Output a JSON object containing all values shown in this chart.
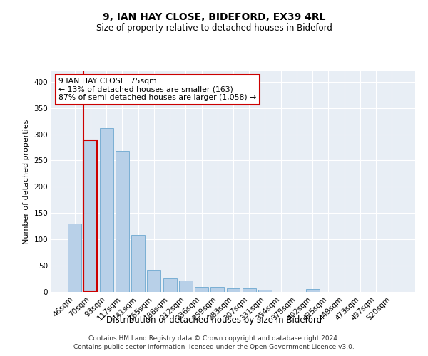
{
  "title": "9, IAN HAY CLOSE, BIDEFORD, EX39 4RL",
  "subtitle": "Size of property relative to detached houses in Bideford",
  "xlabel": "Distribution of detached houses by size in Bideford",
  "ylabel": "Number of detached properties",
  "categories": [
    "46sqm",
    "70sqm",
    "93sqm",
    "117sqm",
    "141sqm",
    "165sqm",
    "188sqm",
    "212sqm",
    "236sqm",
    "259sqm",
    "283sqm",
    "307sqm",
    "331sqm",
    "354sqm",
    "378sqm",
    "402sqm",
    "425sqm",
    "449sqm",
    "473sqm",
    "497sqm",
    "520sqm"
  ],
  "values": [
    130,
    288,
    312,
    268,
    108,
    42,
    26,
    22,
    10,
    10,
    7,
    7,
    4,
    0,
    0,
    5,
    0,
    0,
    0,
    0,
    0
  ],
  "bar_color": "#b8d0e8",
  "bar_edge_color": "#7aafd4",
  "highlight_index": 1,
  "highlight_edge_color": "#cc0000",
  "annotation_box_text": "9 IAN HAY CLOSE: 75sqm\n← 13% of detached houses are smaller (163)\n87% of semi-detached houses are larger (1,058) →",
  "ylim": [
    0,
    420
  ],
  "yticks": [
    0,
    50,
    100,
    150,
    200,
    250,
    300,
    350,
    400
  ],
  "bg_color": "#e8eef5",
  "grid_color": "#ffffff",
  "footer_line1": "Contains HM Land Registry data © Crown copyright and database right 2024.",
  "footer_line2": "Contains public sector information licensed under the Open Government Licence v3.0."
}
